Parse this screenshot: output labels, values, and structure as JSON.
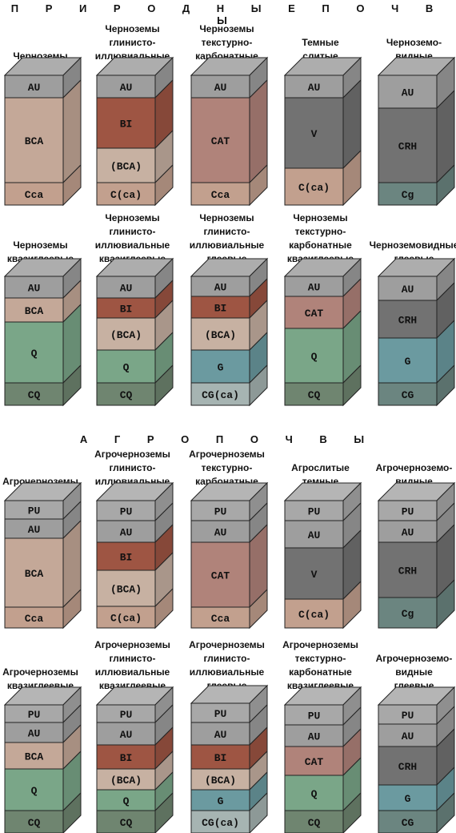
{
  "sections": [
    {
      "title": "П Р И Р О Д Н Ы Е   П О Ч В Ы",
      "rows": [
        [
          {
            "title": [
              "Черноземы"
            ],
            "horizons": [
              {
                "label": "AU",
                "color": "#9e9e9e"
              },
              {
                "label": "BCA",
                "color": "#c4a898"
              },
              {
                "label": "Cca",
                "color": "#c2a08e"
              }
            ]
          },
          {
            "title": [
              "Черноземы",
              "глинисто-",
              "иллювиальные"
            ],
            "horizons": [
              {
                "label": "AU",
                "color": "#9e9e9e"
              },
              {
                "label": "BI",
                "color": "#9e5543"
              },
              {
                "label": "(BCA)",
                "color": "#c7b1a2"
              },
              {
                "label": "C(ca)",
                "color": "#c2a08e"
              }
            ]
          },
          {
            "title": [
              "Черноземы",
              "текстурно-",
              "карбонатные"
            ],
            "horizons": [
              {
                "label": "AU",
                "color": "#9e9e9e"
              },
              {
                "label": "CAT",
                "color": "#b0837a"
              },
              {
                "label": "Cca",
                "color": "#c2a08e"
              }
            ]
          },
          {
            "title": [
              "Темные",
              "слитые"
            ],
            "horizons": [
              {
                "label": "AU",
                "color": "#9e9e9e"
              },
              {
                "label": "V",
                "color": "#727272"
              },
              {
                "label": "C(ca)",
                "color": "#c2a08e"
              }
            ]
          },
          {
            "title": [
              "Черноземо-",
              "видные"
            ],
            "horizons": [
              {
                "label": "AU",
                "color": "#9e9e9e"
              },
              {
                "label": "CRH",
                "color": "#727272"
              },
              {
                "label": "Cg",
                "color": "#6b8580"
              }
            ]
          }
        ],
        [
          {
            "title": [
              "Черноземы",
              "квазиглеевые"
            ],
            "horizons": [
              {
                "label": "AU",
                "color": "#9e9e9e"
              },
              {
                "label": "BCA",
                "color": "#c4a898"
              },
              {
                "label": "Q",
                "color": "#7aa688"
              },
              {
                "label": "CQ",
                "color": "#6f8570"
              }
            ]
          },
          {
            "title": [
              "Черноземы",
              "глинисто-",
              "иллювиальные",
              "квазиглеевые"
            ],
            "horizons": [
              {
                "label": "AU",
                "color": "#9e9e9e"
              },
              {
                "label": "BI",
                "color": "#9e5543"
              },
              {
                "label": "(BCA)",
                "color": "#c7b1a2"
              },
              {
                "label": "Q",
                "color": "#7aa688"
              },
              {
                "label": "CQ",
                "color": "#6f8570"
              }
            ]
          },
          {
            "title": [
              "Черноземы",
              "глинисто-",
              "иллювиальные",
              "глеевые"
            ],
            "horizons": [
              {
                "label": "AU",
                "color": "#9e9e9e"
              },
              {
                "label": "BI",
                "color": "#9e5543"
              },
              {
                "label": "(BCA)",
                "color": "#c7b1a2"
              },
              {
                "label": "G",
                "color": "#6b9aa0"
              },
              {
                "label": "CG(ca)",
                "color": "#a6b4b2"
              }
            ]
          },
          {
            "title": [
              "Черноземы",
              "текстурно-",
              "карбонатные",
              "квазиглеевые"
            ],
            "horizons": [
              {
                "label": "AU",
                "color": "#9e9e9e"
              },
              {
                "label": "CAT",
                "color": "#b0837a"
              },
              {
                "label": "Q",
                "color": "#7aa688"
              },
              {
                "label": "CQ",
                "color": "#6f8570"
              }
            ]
          },
          {
            "title": [
              "Черноземовидные",
              "глеевые"
            ],
            "horizons": [
              {
                "label": "AU",
                "color": "#9e9e9e"
              },
              {
                "label": "CRH",
                "color": "#727272"
              },
              {
                "label": "G",
                "color": "#6b9aa0"
              },
              {
                "label": "CG",
                "color": "#6b8580"
              }
            ]
          }
        ]
      ]
    },
    {
      "title": "А Г Р О П О Ч В Ы",
      "rows": [
        [
          {
            "title": [
              "Агрочерноземы"
            ],
            "horizons": [
              {
                "label": "PU",
                "color": "#a8a8a8"
              },
              {
                "label": "AU",
                "color": "#9e9e9e"
              },
              {
                "label": "BCA",
                "color": "#c4a898"
              },
              {
                "label": "Cca",
                "color": "#c2a08e"
              }
            ]
          },
          {
            "title": [
              "Агрочерноземы",
              "глинисто-",
              "иллювиальные"
            ],
            "horizons": [
              {
                "label": "PU",
                "color": "#a8a8a8"
              },
              {
                "label": "AU",
                "color": "#9e9e9e"
              },
              {
                "label": "BI",
                "color": "#9e5543"
              },
              {
                "label": "(BCA)",
                "color": "#c7b1a2"
              },
              {
                "label": "C(ca)",
                "color": "#c2a08e"
              }
            ]
          },
          {
            "title": [
              "Агрочерноземы",
              "текстурно-",
              "карбонатные"
            ],
            "horizons": [
              {
                "label": "PU",
                "color": "#a8a8a8"
              },
              {
                "label": "AU",
                "color": "#9e9e9e"
              },
              {
                "label": "CAT",
                "color": "#b0837a"
              },
              {
                "label": "Cca",
                "color": "#c2a08e"
              }
            ]
          },
          {
            "title": [
              "Агрослитые",
              "темные"
            ],
            "horizons": [
              {
                "label": "PU",
                "color": "#a8a8a8"
              },
              {
                "label": "AU",
                "color": "#9e9e9e"
              },
              {
                "label": "V",
                "color": "#727272"
              },
              {
                "label": "C(ca)",
                "color": "#c2a08e"
              }
            ]
          },
          {
            "title": [
              "Агрочерноземо-",
              "видные"
            ],
            "horizons": [
              {
                "label": "PU",
                "color": "#a8a8a8"
              },
              {
                "label": "AU",
                "color": "#9e9e9e"
              },
              {
                "label": "CRH",
                "color": "#727272"
              },
              {
                "label": "Cg",
                "color": "#6b8580"
              }
            ]
          }
        ],
        [
          {
            "title": [
              "Агрочерноземы",
              "квазиглеевые"
            ],
            "horizons": [
              {
                "label": "PU",
                "color": "#a8a8a8"
              },
              {
                "label": "AU",
                "color": "#9e9e9e"
              },
              {
                "label": "BCA",
                "color": "#c4a898"
              },
              {
                "label": "Q",
                "color": "#7aa688"
              },
              {
                "label": "CQ",
                "color": "#6f8570"
              }
            ]
          },
          {
            "title": [
              "Агрочерноземы",
              "глинисто-",
              "иллювиальные",
              "квазиглеевые"
            ],
            "horizons": [
              {
                "label": "PU",
                "color": "#a8a8a8"
              },
              {
                "label": "AU",
                "color": "#9e9e9e"
              },
              {
                "label": "BI",
                "color": "#9e5543"
              },
              {
                "label": "(BCA)",
                "color": "#c7b1a2"
              },
              {
                "label": "Q",
                "color": "#7aa688"
              },
              {
                "label": "CQ",
                "color": "#6f8570"
              }
            ]
          },
          {
            "title": [
              "Агрочерноземы",
              "глинисто-",
              "иллювиальные",
              "глеевые"
            ],
            "horizons": [
              {
                "label": "PU",
                "color": "#a8a8a8"
              },
              {
                "label": "AU",
                "color": "#9e9e9e"
              },
              {
                "label": "BI",
                "color": "#9e5543"
              },
              {
                "label": "(BCA)",
                "color": "#c7b1a2"
              },
              {
                "label": "G",
                "color": "#6b9aa0"
              },
              {
                "label": "CG(ca)",
                "color": "#a6b4b2"
              }
            ]
          },
          {
            "title": [
              "Агрочерноземы",
              "текстурно-",
              "карбонатные",
              "квазиглеевые"
            ],
            "horizons": [
              {
                "label": "PU",
                "color": "#a8a8a8"
              },
              {
                "label": "AU",
                "color": "#9e9e9e"
              },
              {
                "label": "CAT",
                "color": "#b0837a"
              },
              {
                "label": "Q",
                "color": "#7aa688"
              },
              {
                "label": "CQ",
                "color": "#6f8570"
              }
            ]
          },
          {
            "title": [
              "Агрочерноземо-",
              "видные",
              "глеевые"
            ],
            "horizons": [
              {
                "label": "PU",
                "color": "#a8a8a8"
              },
              {
                "label": "AU",
                "color": "#9e9e9e"
              },
              {
                "label": "CRH",
                "color": "#727272"
              },
              {
                "label": "G",
                "color": "#6b9aa0"
              },
              {
                "label": "CG",
                "color": "#6b8580"
              }
            ]
          }
        ]
      ]
    }
  ]
}
